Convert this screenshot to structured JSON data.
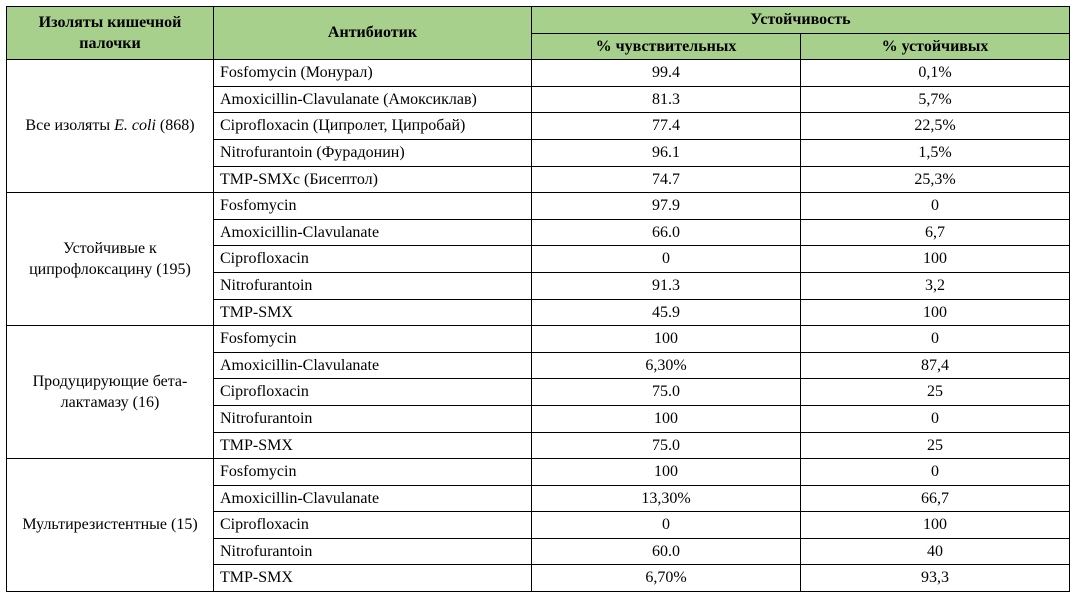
{
  "header": {
    "isolates": "Изоляты кишечной палочки",
    "antibiotic": "Антибиотик",
    "resistance": "Устойчивость",
    "sensitive": "% чувствительных",
    "resistant": "% устойчивых"
  },
  "groups": [
    {
      "label_pre": "Все изоляты ",
      "label_italic": "E. coli",
      "label_post": " (868)",
      "rows": [
        {
          "ab": "Fosfomycin (Монурал)",
          "s": "99.4",
          "r": "0,1%"
        },
        {
          "ab": "Amoxicillin-Clavulanate (Амоксиклав)",
          "s": "81.3",
          "r": "5,7%"
        },
        {
          "ab": "Ciprofloxacin (Ципролет, Ципробай)",
          "s": "77.4",
          "r": "22,5%"
        },
        {
          "ab": "Nitrofurantoin (Фурадонин)",
          "s": "96.1",
          "r": "1,5%"
        },
        {
          "ab": "TMP-SMXc (Бисептол)",
          "s": "74.7",
          "r": "25,3%"
        }
      ]
    },
    {
      "label_pre": "Устойчивые к ципрофлоксацину (195)",
      "rows": [
        {
          "ab": "Fosfomycin",
          "s": "97.9",
          "r": "0"
        },
        {
          "ab": "Amoxicillin-Clavulanate",
          "s": "66.0",
          "r": "6,7"
        },
        {
          "ab": "Ciprofloxacin",
          "s": "0",
          "r": "100"
        },
        {
          "ab": "Nitrofurantoin",
          "s": "91.3",
          "r": "3,2"
        },
        {
          "ab": "TMP-SMX",
          "s": "45.9",
          "r": "100"
        }
      ]
    },
    {
      "label_pre": "Продуцирующие бета-лактамазу (16)",
      "rows": [
        {
          "ab": "Fosfomycin",
          "s": "100",
          "r": "0"
        },
        {
          "ab": "Amoxicillin-Clavulanate",
          "s": "6,30%",
          "r": "87,4"
        },
        {
          "ab": "Ciprofloxacin",
          "s": "75.0",
          "r": "25"
        },
        {
          "ab": "Nitrofurantoin",
          "s": "100",
          "r": "0"
        },
        {
          "ab": "TMP-SMX",
          "s": "75.0",
          "r": "25"
        }
      ]
    },
    {
      "label_pre": "Мультирезистентные (15)",
      "rows": [
        {
          "ab": "Fosfomycin",
          "s": "100",
          "r": "0"
        },
        {
          "ab": "Amoxicillin-Clavulanate",
          "s": "13,30%",
          "r": "66,7"
        },
        {
          "ab": "Ciprofloxacin",
          "s": "0",
          "r": "100"
        },
        {
          "ab": "Nitrofurantoin",
          "s": "60.0",
          "r": "40"
        },
        {
          "ab": "TMP-SMX",
          "s": "6,70%",
          "r": "93,3"
        }
      ]
    }
  ],
  "style": {
    "header_bg": "#a8d08d",
    "border_color": "#000000",
    "font_family": "Times New Roman",
    "header_fontsize": 16,
    "body_fontsize": 16
  }
}
